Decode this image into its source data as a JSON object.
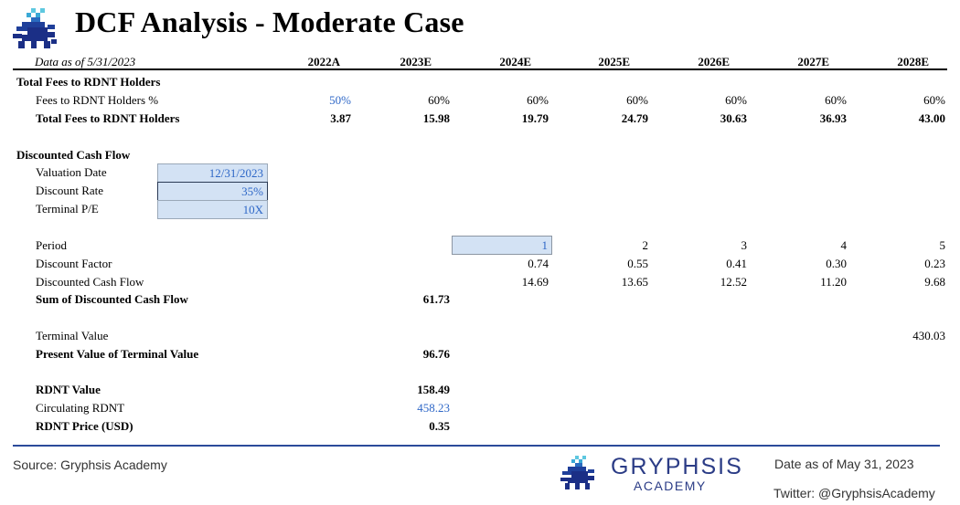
{
  "title": "DCF Analysis - Moderate Case",
  "data_as_of": "Data as of 5/31/2023",
  "years": [
    "2022A",
    "2023E",
    "2024E",
    "2025E",
    "2026E",
    "2027E",
    "2028E"
  ],
  "fees": {
    "section_label": "Total Fees to RDNT Holders",
    "pct_label": "Fees to RDNT Holders %",
    "pct_values": [
      "50%",
      "60%",
      "60%",
      "60%",
      "60%",
      "60%",
      "60%"
    ],
    "total_label": "Total Fees to RDNT Holders",
    "total_values": [
      "3.87",
      "15.98",
      "19.79",
      "24.79",
      "30.63",
      "36.93",
      "43.00"
    ]
  },
  "dcf": {
    "section_label": "Discounted Cash Flow",
    "valuation_date_label": "Valuation Date",
    "valuation_date": "12/31/2023",
    "discount_rate_label": "Discount Rate",
    "discount_rate": "35%",
    "terminal_pe_label": "Terminal P/E",
    "terminal_pe": "10X",
    "period_label": "Period",
    "periods": [
      "1",
      "2",
      "3",
      "4",
      "5"
    ],
    "discount_factor_label": "Discount Factor",
    "discount_factors": [
      "0.74",
      "0.55",
      "0.41",
      "0.30",
      "0.23"
    ],
    "dcf_label": "Discounted Cash Flow",
    "dcf_values": [
      "14.69",
      "13.65",
      "12.52",
      "11.20",
      "9.68"
    ],
    "sum_label": "Sum of Discounted Cash Flow",
    "sum_value": "61.73",
    "terminal_value_label": "Terminal Value",
    "terminal_value": "430.03",
    "pv_terminal_label": "Present Value of Terminal Value",
    "pv_terminal": "96.76",
    "rdnt_value_label": "RDNT Value",
    "rdnt_value": "158.49",
    "circulating_label": "Circulating RDNT",
    "circulating": "458.23",
    "price_label": "RDNT Price (USD)",
    "price": "0.35"
  },
  "footer": {
    "source": "Source: Gryphsis Academy",
    "brand_name": "GRYPHSIS",
    "brand_sub": "ACADEMY",
    "date": "Date as of May 31, 2023",
    "twitter": "Twitter: @GryphsisAcademy"
  },
  "colors": {
    "input_blue": "#2e67c7",
    "input_fill": "#d3e2f4",
    "brand": "#2b3c86"
  }
}
